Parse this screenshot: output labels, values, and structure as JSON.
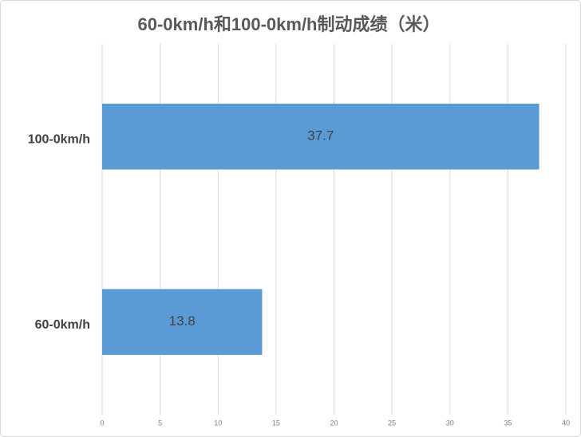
{
  "chart_data": {
    "type": "bar",
    "orientation": "horizontal",
    "title": "60-0km/h和100-0km/h制动成绩（米）",
    "categories": [
      "100-0km/h",
      "60-0km/h"
    ],
    "values": [
      37.7,
      13.8
    ],
    "color": "#5b9bd5",
    "xlim": [
      0,
      40
    ],
    "xticks": [
      0,
      5,
      10,
      15,
      20,
      25,
      30,
      35,
      40
    ],
    "grid": true
  }
}
